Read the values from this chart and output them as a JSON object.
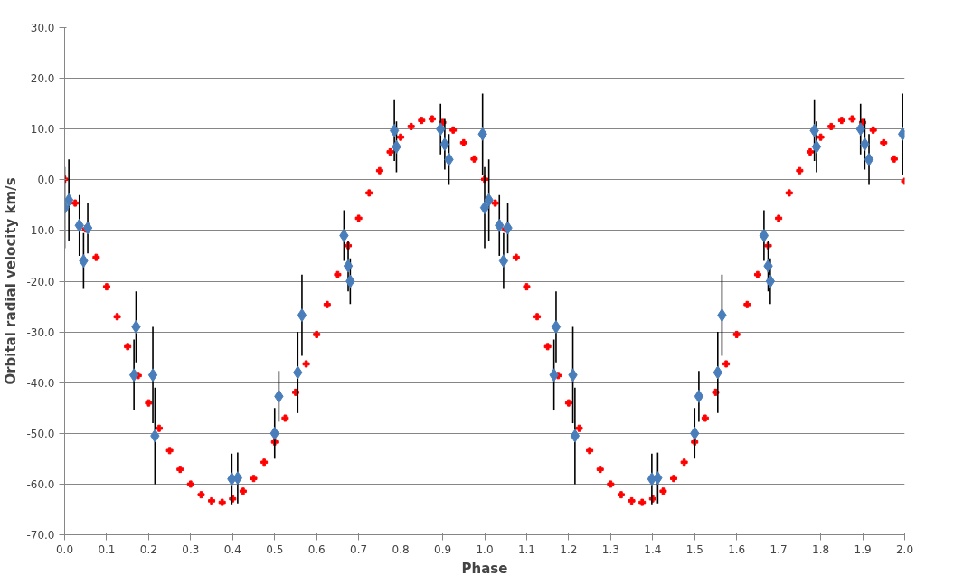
{
  "chart_data": {
    "type": "scatter",
    "xlabel": "Phase",
    "ylabel": "Orbital radial velocity km/s",
    "xlim": [
      0,
      2
    ],
    "ylim": [
      -70,
      30
    ],
    "xticks": [
      {
        "value": 0,
        "label": "0.0"
      },
      {
        "value": 0.1,
        "label": "0.1"
      },
      {
        "value": 0.2,
        "label": "0.2"
      },
      {
        "value": 0.3,
        "label": "0.3"
      },
      {
        "value": 0.4,
        "label": "0.4"
      },
      {
        "value": 0.5,
        "label": "0.5"
      },
      {
        "value": 0.6,
        "label": "0.6"
      },
      {
        "value": 0.7,
        "label": "0.7"
      },
      {
        "value": 0.8,
        "label": "0.8"
      },
      {
        "value": 0.9,
        "label": "0.9"
      },
      {
        "value": 1,
        "label": "1.0"
      },
      {
        "value": 1.1,
        "label": "1.1"
      },
      {
        "value": 1.2,
        "label": "1.2"
      },
      {
        "value": 1.3,
        "label": "1.3"
      },
      {
        "value": 1.4,
        "label": "1.4"
      },
      {
        "value": 1.5,
        "label": "1.5"
      },
      {
        "value": 1.6,
        "label": "1.6"
      },
      {
        "value": 1.7,
        "label": "1.7"
      },
      {
        "value": 1.8,
        "label": "1.8"
      },
      {
        "value": 1.9,
        "label": "1.9"
      },
      {
        "value": 2,
        "label": "2.0"
      }
    ],
    "yticks": [
      {
        "value": 30,
        "label": "30.0"
      },
      {
        "value": 20,
        "label": "20.0"
      },
      {
        "value": 10,
        "label": "10.0"
      },
      {
        "value": 0,
        "label": "0.0"
      },
      {
        "value": -10,
        "label": "-10.0"
      },
      {
        "value": -20,
        "label": "-20.0"
      },
      {
        "value": -30,
        "label": "-30.0"
      },
      {
        "value": -40,
        "label": "-40.0"
      },
      {
        "value": -50,
        "label": "-50.0"
      },
      {
        "value": -60,
        "label": "-60.0"
      },
      {
        "value": -70,
        "label": "-70.0"
      }
    ],
    "grid": "y",
    "series": [
      {
        "marker": "cross",
        "color": "#ff0000",
        "x": [
          0,
          0.025,
          0.05,
          0.075,
          0.1,
          0.125,
          0.15,
          0.175,
          0.2,
          0.225,
          0.25,
          0.275,
          0.3,
          0.325,
          0.35,
          0.375,
          0.4,
          0.425,
          0.45,
          0.475,
          0.5,
          0.525,
          0.55,
          0.575,
          0.6,
          0.625,
          0.65,
          0.675,
          0.7,
          0.725,
          0.75,
          0.775,
          0.8,
          0.825,
          0.85,
          0.875,
          0.9,
          0.925,
          0.95,
          0.975,
          1,
          1.025,
          1.05,
          1.075,
          1.1,
          1.125,
          1.15,
          1.175,
          1.2,
          1.225,
          1.25,
          1.275,
          1.3,
          1.325,
          1.35,
          1.375,
          1.4,
          1.425,
          1.45,
          1.475,
          1.5,
          1.525,
          1.55,
          1.575,
          1.6,
          1.625,
          1.65,
          1.675,
          1.7,
          1.725,
          1.75,
          1.775,
          1.8,
          1.825,
          1.85,
          1.875,
          1.9,
          1.925,
          1.95,
          1.975,
          2
        ],
        "values": [
          0.1,
          -4.6,
          -9.7,
          -15.3,
          -21.1,
          -27.0,
          -32.9,
          -38.6,
          -44.0,
          -49.0,
          -53.4,
          -57.1,
          -60.0,
          -62.1,
          -63.3,
          -63.6,
          -62.9,
          -61.4,
          -58.9,
          -55.7,
          -51.7,
          -47.0,
          -41.9,
          -36.3,
          -30.5,
          -24.6,
          -18.7,
          -13.0,
          -7.6,
          -2.6,
          1.8,
          5.5,
          8.4,
          10.5,
          11.7,
          12.0,
          11.3,
          9.8,
          7.3,
          4.1,
          0.1,
          -4.6,
          -9.7,
          -15.3,
          -21.1,
          -27.0,
          -32.9,
          -38.6,
          -44.0,
          -49.0,
          -53.4,
          -57.1,
          -60.0,
          -62.1,
          -63.3,
          -63.6,
          -62.9,
          -61.4,
          -58.9,
          -55.7,
          -51.7,
          -47.0,
          -41.9,
          -36.3,
          -30.5,
          -24.6,
          -18.7,
          -13.0,
          -7.6,
          -2.6,
          1.8,
          5.5,
          8.4,
          10.5,
          11.7,
          12.0,
          11.3,
          9.8,
          7.3,
          4.1,
          -0.3
        ]
      },
      {
        "marker": "diamond",
        "color": "#4a7ebb",
        "x": [
          0.0,
          0.01,
          0.035,
          0.045,
          0.055,
          0.165,
          0.17,
          0.21,
          0.215,
          0.398,
          0.412,
          0.5,
          0.51,
          0.555,
          0.565,
          0.665,
          0.675,
          0.68,
          0.785,
          0.79,
          0.895,
          0.905,
          0.915,
          0.995,
          1.0,
          1.01,
          1.035,
          1.045,
          1.055,
          1.165,
          1.17,
          1.21,
          1.215,
          1.398,
          1.412,
          1.5,
          1.51,
          1.555,
          1.565,
          1.665,
          1.675,
          1.68,
          1.785,
          1.79,
          1.895,
          1.905,
          1.915,
          1.995
        ],
        "values": [
          -5.5,
          -4.0,
          -9.0,
          -16.0,
          -9.5,
          -38.5,
          -29.0,
          -38.5,
          -50.5,
          -59.0,
          -58.8,
          -50.0,
          -42.7,
          -38.0,
          -26.7,
          -11.0,
          -17.0,
          -20.0,
          9.7,
          6.5,
          10.0,
          7.0,
          4.0,
          9.0,
          -5.5,
          -4.0,
          -9.0,
          -16.0,
          -9.5,
          -38.5,
          -29.0,
          -38.5,
          -50.5,
          -59.0,
          -58.8,
          -50.0,
          -42.7,
          -38.0,
          -26.7,
          -11.0,
          -17.0,
          -20.0,
          9.7,
          6.5,
          10.0,
          7.0,
          4.0,
          9.0
        ],
        "errors": [
          8,
          8,
          6,
          5.5,
          5,
          7,
          7,
          9.5,
          9.5,
          5,
          5,
          5,
          5,
          8,
          8,
          5,
          5,
          4.5,
          6,
          5,
          5,
          5,
          5,
          8,
          8,
          8,
          6,
          5.5,
          5,
          7,
          7,
          9.5,
          9.5,
          5,
          5,
          5,
          5,
          8,
          8,
          5,
          5,
          4.5,
          6,
          5,
          5,
          5,
          5,
          8
        ]
      }
    ]
  }
}
